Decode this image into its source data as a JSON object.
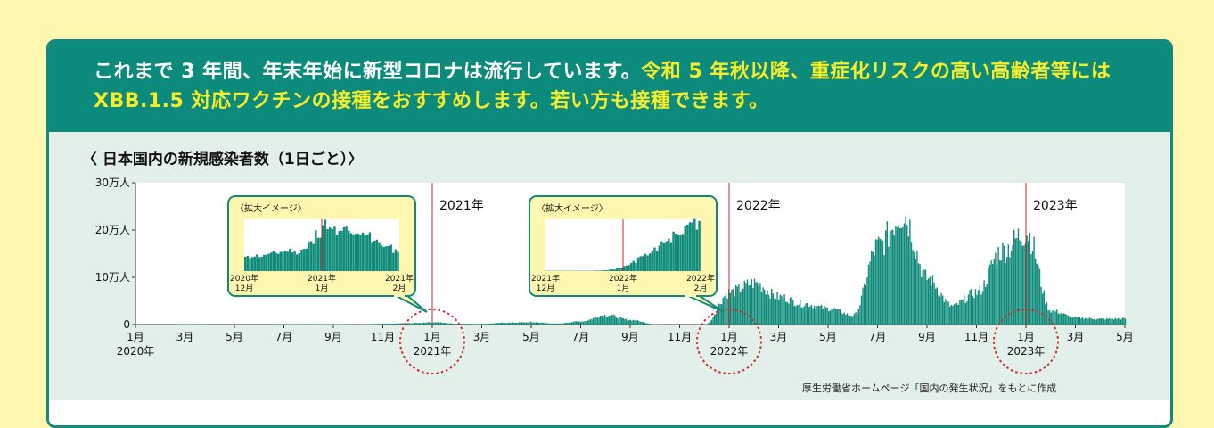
{
  "headline": {
    "part1": "これまで 3 年間、年末年始に新型コロナは流行しています。",
    "part2": "令和 5 年秋以降、重症化リスクの高い高齢者等には XBB.1.5 対応ワクチンの接種をおすすめします。",
    "part3": "若い方も接種できます。"
  },
  "chart_title": "〈 日本国内の新規感染者数（1日ごと）〉",
  "credit": "厚生労働省ホームページ「国内の発生状況」をもとに作成",
  "colors": {
    "bar": "#0f8b7a",
    "marker": "#c0282d",
    "banner": "#0c8a7c",
    "highlight": "#f6ee2a",
    "inset_bg": "#fdf7b0"
  },
  "chart_data": {
    "type": "area",
    "ylabel_ticks": [
      "0",
      "10万人",
      "20万人",
      "30万人"
    ],
    "ylim": [
      0,
      300000
    ],
    "x_tick_labels": [
      "1月",
      "3月",
      "5月",
      "7月",
      "9月",
      "11月",
      "1月",
      "3月",
      "5月",
      "7月",
      "9月",
      "11月",
      "1月",
      "3月",
      "5月",
      "7月",
      "9月",
      "11月",
      "1月",
      "3月",
      "5月"
    ],
    "year_labels": [
      {
        "tick": 0,
        "label": "2020年"
      },
      {
        "tick": 6,
        "label": "2021年"
      },
      {
        "tick": 12,
        "label": "2022年"
      },
      {
        "tick": 18,
        "label": "2023年"
      }
    ],
    "year_markers": [
      {
        "tick": 6,
        "label": "2021年"
      },
      {
        "tick": 12,
        "label": "2022年"
      },
      {
        "tick": 18,
        "label": "2023年"
      }
    ],
    "series": [
      {
        "x_month_index": [
          0,
          1,
          2,
          3,
          4,
          5,
          6,
          7,
          8,
          9,
          10,
          11,
          12,
          13,
          14,
          15,
          16,
          17,
          18,
          19,
          20
        ],
        "x": [
          "2020-01",
          "2020-02",
          "2020-03",
          "2020-04",
          "2020-05",
          "2020-06",
          "2020-07",
          "2020-08",
          "2020-09",
          "2020-10",
          "2020-11",
          "2020-12",
          "2021-01",
          "2021-02",
          "2021-03",
          "2021-04",
          "2021-05",
          "2021-06",
          "2021-07",
          "2021-08",
          "2021-09",
          "2021-10",
          "2021-11",
          "2021-12",
          "2022-01",
          "2022-02",
          "2022-03",
          "2022-04",
          "2022-05",
          "2022-06",
          "2022-07",
          "2022-08",
          "2022-09",
          "2022-10",
          "2022-11",
          "2022-12",
          "2023-01",
          "2023-02",
          "2023-03",
          "2023-04",
          "2023-05"
        ],
        "values": [
          0,
          0,
          800,
          600,
          300,
          200,
          700,
          1200,
          700,
          600,
          1600,
          2800,
          5000,
          1800,
          1500,
          4000,
          5000,
          2000,
          7000,
          21000,
          10000,
          700,
          200,
          300,
          70000,
          90000,
          60000,
          45000,
          35000,
          20000,
          170000,
          240000,
          100000,
          40000,
          70000,
          160000,
          200000,
          30000,
          15000,
          12000,
          13000
        ]
      }
    ],
    "insets": [
      {
        "title": "〈拡大イメージ〉",
        "labels": [
          {
            "top": "2020年",
            "bottom": "12月"
          },
          {
            "top": "2021年",
            "bottom": "1月"
          },
          {
            "top": "2021年",
            "bottom": "2月"
          }
        ],
        "values": [
          2200,
          2500,
          2400,
          2700,
          2900,
          3100,
          3300,
          3000,
          3500,
          4500,
          6000,
          7500,
          6500,
          6000,
          6800,
          5500,
          5800,
          6200,
          5000,
          4200,
          3800,
          3300
        ]
      },
      {
        "title": "〈拡大イメージ〉",
        "labels": [
          {
            "top": "2021年",
            "bottom": "12月"
          },
          {
            "top": "2022年",
            "bottom": "1月"
          },
          {
            "top": "2022年",
            "bottom": "2月"
          }
        ],
        "values": [
          150,
          150,
          150,
          160,
          170,
          180,
          200,
          250,
          400,
          900,
          1800,
          3200,
          5000,
          7500,
          9000,
          12000,
          15500,
          18000,
          21000,
          23000,
          25000,
          26000
        ]
      }
    ]
  }
}
